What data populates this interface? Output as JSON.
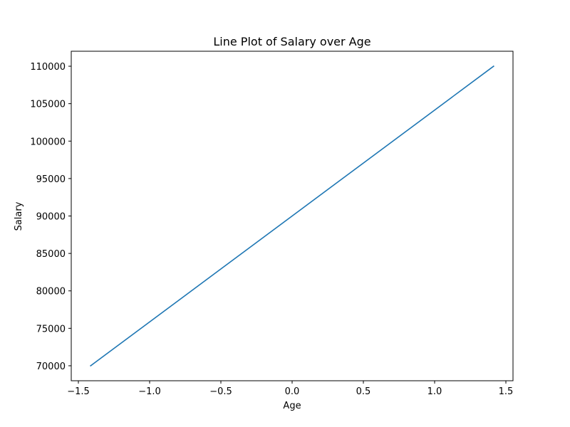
{
  "chart_data": {
    "type": "line",
    "title": "Line Plot of Salary over Age",
    "xlabel": "Age",
    "ylabel": "Salary",
    "xlim": [
      -1.55,
      1.55
    ],
    "ylim": [
      68000,
      112000
    ],
    "xticks": [
      -1.5,
      -1.0,
      -0.5,
      0.0,
      0.5,
      1.0,
      1.5
    ],
    "xtick_labels": [
      "−1.5",
      "−1.0",
      "−0.5",
      "0.0",
      "0.5",
      "1.0",
      "1.5"
    ],
    "yticks": [
      70000,
      75000,
      80000,
      85000,
      90000,
      95000,
      100000,
      105000,
      110000
    ],
    "ytick_labels": [
      "70000",
      "75000",
      "80000",
      "85000",
      "90000",
      "95000",
      "100000",
      "105000",
      "110000"
    ],
    "grid": false,
    "series": [
      {
        "color": "#1f77b4",
        "x": [
          -1.414,
          1.414
        ],
        "y": [
          70000,
          110000
        ]
      }
    ]
  }
}
